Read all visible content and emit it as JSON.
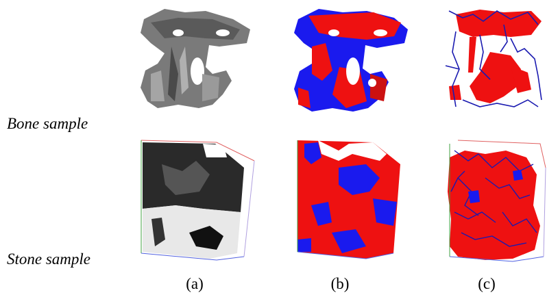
{
  "rows": [
    {
      "label": "Bone sample"
    },
    {
      "label": "Stone sample"
    }
  ],
  "columns": [
    {
      "label": "(a)"
    },
    {
      "label": "(b)"
    },
    {
      "label": "(c)"
    }
  ],
  "colors": {
    "solid_phase": "#ee1111",
    "pore_phase": "#1a1aee",
    "network": "#1a1ab0",
    "grey_surface": "#8a8a8a",
    "dark_surface": "#2a2a2a"
  }
}
